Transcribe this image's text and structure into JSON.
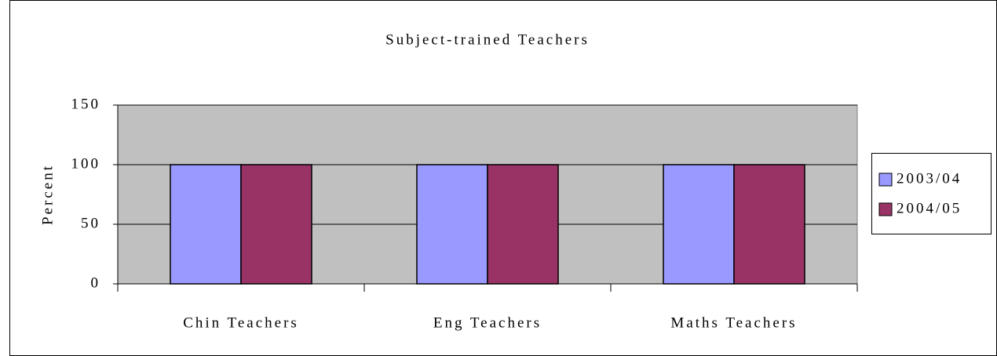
{
  "chart_data": {
    "type": "bar",
    "title": "Subject-trained Teachers",
    "ylabel": "Percent",
    "categories": [
      "Chin Teachers",
      "Eng Teachers",
      "Maths Teachers"
    ],
    "series": [
      {
        "name": "2003/04",
        "color": "#9999ff",
        "values": [
          100,
          100,
          100
        ]
      },
      {
        "name": "2004/05",
        "color": "#993366",
        "values": [
          100,
          100,
          100
        ]
      }
    ],
    "ylim": [
      0,
      150
    ],
    "yticks": [
      0,
      50,
      100,
      150
    ],
    "grid": true,
    "plot_background": "#c0c0c0",
    "legend": "right"
  }
}
